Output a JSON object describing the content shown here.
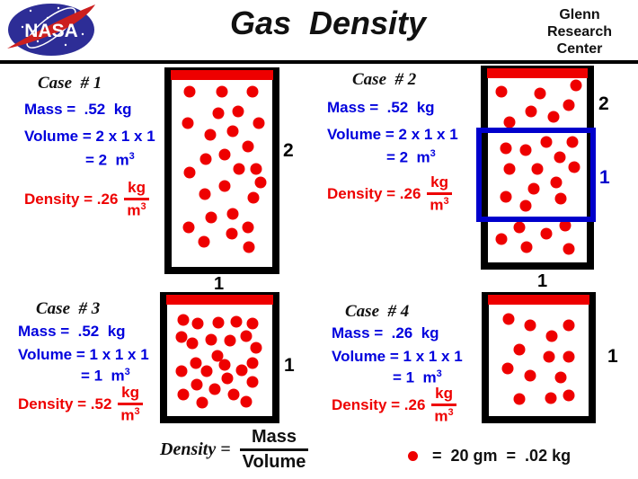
{
  "colors": {
    "blue_text": "#0000dd",
    "red": "#ee0000",
    "box_blue": "#0000cc",
    "logo_blue": "#2d2d96"
  },
  "header": {
    "logo": "NASA",
    "title": "Gas  Density",
    "org": [
      "Glenn",
      "Research",
      "Center"
    ]
  },
  "cases": [
    {
      "name": "Case  # 1",
      "mass": "Mass =  .52  kg",
      "volume": "Volume = 2 x 1 x 1",
      "volume_result": "= 2  m",
      "volume_exp": "3",
      "density": "Density = .26",
      "frac_num": "kg",
      "frac_den": "m",
      "frac_den_exp": "3",
      "height_label": "2",
      "width_label": "1",
      "dots": [
        [
          18,
          11
        ],
        [
          50,
          11
        ],
        [
          80,
          11
        ],
        [
          46,
          22
        ],
        [
          66,
          21
        ],
        [
          16,
          27
        ],
        [
          87,
          27
        ],
        [
          38,
          33
        ],
        [
          61,
          31
        ],
        [
          76,
          39
        ],
        [
          53,
          43
        ],
        [
          34,
          45
        ],
        [
          18,
          52
        ],
        [
          67,
          50
        ],
        [
          84,
          50
        ],
        [
          88,
          57
        ],
        [
          33,
          63
        ],
        [
          53,
          59
        ],
        [
          81,
          65
        ],
        [
          39,
          75
        ],
        [
          61,
          73
        ],
        [
          17,
          80
        ],
        [
          76,
          80
        ],
        [
          32,
          87
        ],
        [
          60,
          83
        ],
        [
          77,
          90
        ]
      ]
    },
    {
      "name": "Case  # 2",
      "mass": "Mass =  .52  kg",
      "volume": "Volume = 2 x 1 x 1",
      "volume_result": "= 2  m",
      "volume_exp": "3",
      "density": "Density = .26",
      "frac_num": "kg",
      "frac_den": "m",
      "frac_den_exp": "3",
      "height_label": "2",
      "inner_label": "1",
      "width_label": "1",
      "dots": [
        [
          14,
          12
        ],
        [
          53,
          13
        ],
        [
          89,
          9
        ],
        [
          44,
          22
        ],
        [
          82,
          19
        ],
        [
          66,
          25
        ],
        [
          22,
          28
        ],
        [
          18,
          41
        ],
        [
          38,
          42
        ],
        [
          59,
          38
        ],
        [
          85,
          38
        ],
        [
          73,
          46
        ],
        [
          87,
          51
        ],
        [
          22,
          52
        ],
        [
          50,
          52
        ],
        [
          69,
          59
        ],
        [
          46,
          62
        ],
        [
          18,
          66
        ],
        [
          74,
          67
        ],
        [
          38,
          71
        ],
        [
          32,
          82
        ],
        [
          78,
          81
        ],
        [
          59,
          85
        ],
        [
          14,
          88
        ],
        [
          39,
          92
        ],
        [
          82,
          93
        ]
      ]
    },
    {
      "name": "Case  # 3",
      "mass": "Mass =  .52  kg",
      "volume": "Volume = 1 x 1 x 1",
      "volume_result": "= 1  m",
      "volume_exp": "3",
      "density": "Density = .52",
      "frac_num": "kg",
      "frac_den": "m",
      "frac_den_exp": "3",
      "height_label": "1",
      "dots": [
        [
          15,
          21
        ],
        [
          29,
          24
        ],
        [
          49,
          23
        ],
        [
          66,
          22
        ],
        [
          81,
          24
        ],
        [
          14,
          35
        ],
        [
          24,
          40
        ],
        [
          42,
          37
        ],
        [
          60,
          38
        ],
        [
          75,
          34
        ],
        [
          85,
          44
        ],
        [
          48,
          50
        ],
        [
          55,
          58
        ],
        [
          27,
          56
        ],
        [
          81,
          56
        ],
        [
          14,
          63
        ],
        [
          38,
          63
        ],
        [
          71,
          62
        ],
        [
          57,
          69
        ],
        [
          28,
          74
        ],
        [
          81,
          72
        ],
        [
          45,
          78
        ],
        [
          15,
          82
        ],
        [
          63,
          82
        ],
        [
          75,
          88
        ],
        [
          33,
          89
        ]
      ]
    },
    {
      "name": "Case  # 4",
      "mass": "Mass =  .26  kg",
      "volume": "Volume = 1 x 1 x 1",
      "volume_result": "= 1  m",
      "volume_exp": "3",
      "density": "Density = .26",
      "frac_num": "kg",
      "frac_den": "m",
      "frac_den_exp": "3",
      "height_label": "1",
      "dots": [
        [
          20,
          20
        ],
        [
          41,
          25
        ],
        [
          80,
          25
        ],
        [
          63,
          34
        ],
        [
          31,
          45
        ],
        [
          60,
          51
        ],
        [
          80,
          51
        ],
        [
          19,
          61
        ],
        [
          41,
          67
        ],
        [
          72,
          68
        ],
        [
          31,
          86
        ],
        [
          62,
          85
        ],
        [
          80,
          83
        ]
      ]
    }
  ],
  "formula": {
    "lhs": "Density =",
    "numerator": "Mass",
    "denominator": "Volume"
  },
  "legend": {
    "text": "=  20 gm  =  .02 kg"
  }
}
